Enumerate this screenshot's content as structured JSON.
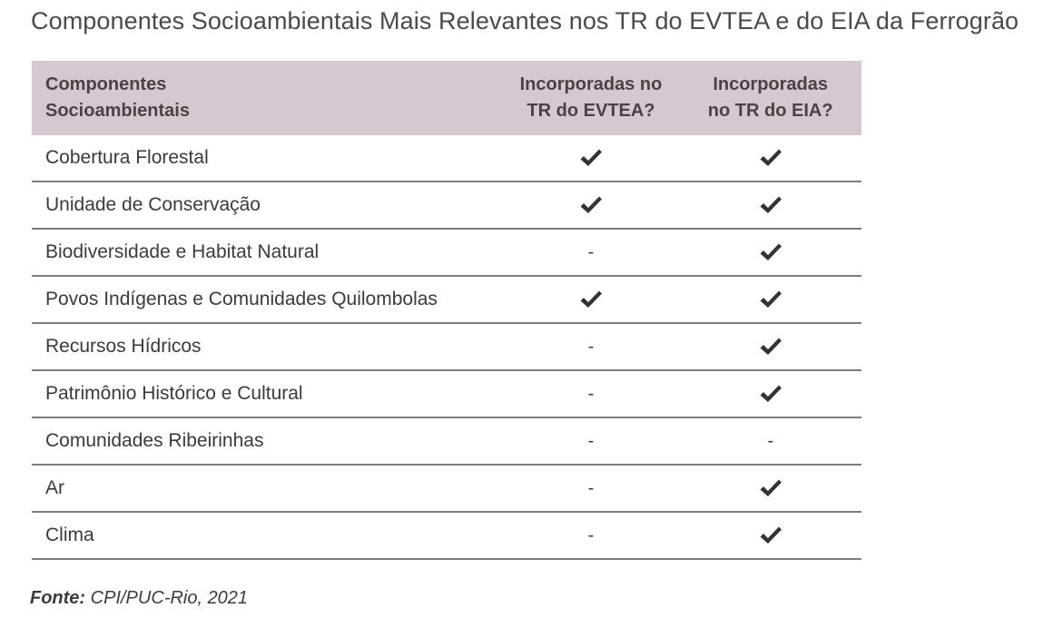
{
  "title": "Componentes Socioambientais Mais Relevantes nos TR do EVTEA e do EIA da Ferrogrão",
  "headers": {
    "component": [
      "Componentes",
      "Socioambientais"
    ],
    "evtea": [
      "Incorporadas no",
      "TR do EVTEA?"
    ],
    "eia": [
      "Incorporadas",
      "no TR do EIA?"
    ]
  },
  "rows": [
    {
      "component": "Cobertura Florestal",
      "evtea": "check",
      "eia": "check"
    },
    {
      "component": "Unidade de Conservação",
      "evtea": "check",
      "eia": "check"
    },
    {
      "component": "Biodiversidade e Habitat Natural",
      "evtea": "-",
      "eia": "check"
    },
    {
      "component": "Povos Indígenas e Comunidades Quilombolas",
      "evtea": "check",
      "eia": "check"
    },
    {
      "component": "Recursos Hídricos",
      "evtea": "-",
      "eia": "check"
    },
    {
      "component": "Patrimônio Histórico e Cultural",
      "evtea": "-",
      "eia": "check"
    },
    {
      "component": "Comunidades Ribeirinhas",
      "evtea": "-",
      "eia": "-"
    },
    {
      "component": "Ar",
      "evtea": "-",
      "eia": "check"
    },
    {
      "component": "Clima",
      "evtea": "-",
      "eia": "check"
    }
  ],
  "source": {
    "label": "Fonte:",
    "text": "CPI/PUC-Rio, 2021"
  },
  "colors": {
    "header_bg": "#d6c8d1",
    "rule": "#7d7d7d"
  }
}
